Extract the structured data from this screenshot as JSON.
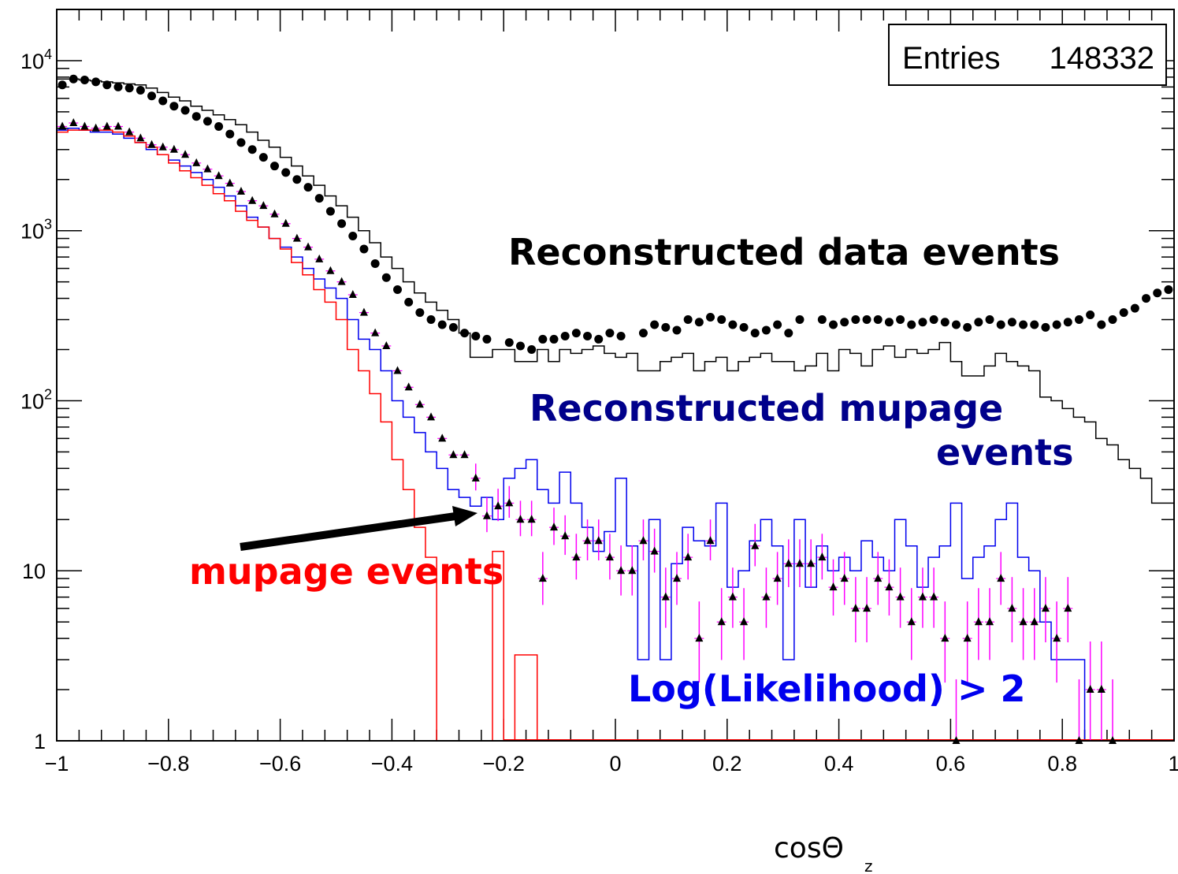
{
  "stats_box": {
    "label": "Entries",
    "value": "148332"
  },
  "annotations": {
    "data": "Reconstructed data events",
    "mupage_reco_line1": "Reconstructed mupage",
    "mupage_reco_line2": "events",
    "mupage": "mupage events",
    "cut": "Log(Likelihood) > 2"
  },
  "x_title_main": "cosΘ",
  "x_title_sub": "z",
  "colors": {
    "data": "#000000",
    "mupage_reco": "#0000ee",
    "mupage_reco_label": "#00008b",
    "mupage": "#ff0000",
    "cut_points": "#000000",
    "cut_errors": "#ff00ff",
    "cut_label": "#0000ee"
  },
  "chart_data": {
    "type": "histogram",
    "x_range": [
      -1,
      1
    ],
    "y_range": [
      1,
      20000
    ],
    "y_log": true,
    "x_ticks": [
      "-1",
      "-0.8",
      "-0.6",
      "-0.4",
      "-0.2",
      "0",
      "0.2",
      "0.4",
      "0.6",
      "0.8",
      "1"
    ],
    "x_tick_values": [
      -1,
      -0.8,
      -0.6,
      -0.4,
      -0.2,
      0,
      0.2,
      0.4,
      0.6,
      0.8,
      1
    ],
    "y_ticks": [
      {
        "value": 1,
        "base": "1",
        "exp": ""
      },
      {
        "value": 10,
        "base": "10",
        "exp": ""
      },
      {
        "value": 100,
        "base": "10",
        "exp": "2"
      },
      {
        "value": 1000,
        "base": "10",
        "exp": "3"
      },
      {
        "value": 10000,
        "base": "10",
        "exp": "4"
      }
    ],
    "series": [
      {
        "name": "Reconstructed data events",
        "style": "points-circle",
        "x_start": -1,
        "bin_width": 0.02,
        "values": [
          7200,
          7800,
          7700,
          7500,
          7200,
          7000,
          6900,
          6700,
          6200,
          5800,
          5400,
          5100,
          4700,
          4400,
          4100,
          3700,
          3300,
          3000,
          2700,
          2400,
          2200,
          2000,
          1800,
          1550,
          1300,
          1100,
          930,
          780,
          640,
          530,
          450,
          380,
          330,
          300,
          280,
          270,
          250,
          240,
          230,
          240,
          220,
          210,
          200,
          230,
          230,
          240,
          250,
          240,
          230,
          250,
          240,
          260,
          250,
          280,
          270,
          260,
          300,
          290,
          310,
          300,
          280,
          270,
          250,
          260,
          280,
          250,
          300,
          310,
          300,
          280,
          290,
          300,
          300,
          300,
          290,
          300,
          280,
          290,
          300,
          290,
          280,
          270,
          290,
          300,
          280,
          290,
          280,
          280,
          270,
          280,
          290,
          300,
          320,
          280,
          300,
          330,
          350,
          400,
          430,
          450
        ],
        "missing_bins": [
          39,
          51,
          67
        ]
      },
      {
        "name": "",
        "style": "step",
        "x_start": -1,
        "bin_width": 0.02,
        "values": [
          7800,
          7800,
          7700,
          7600,
          7500,
          7400,
          7300,
          7200,
          6900,
          6500,
          6100,
          5800,
          5400,
          5100,
          4800,
          4500,
          4200,
          3800,
          3400,
          3100,
          2700,
          2400,
          2100,
          1850,
          1600,
          1400,
          1200,
          1000,
          850,
          700,
          600,
          500,
          430,
          380,
          340,
          300,
          250,
          180,
          180,
          200,
          200,
          170,
          170,
          200,
          170,
          200,
          190,
          200,
          210,
          190,
          180,
          190,
          150,
          150,
          170,
          180,
          190,
          150,
          170,
          180,
          150,
          170,
          180,
          190,
          170,
          170,
          150,
          160,
          190,
          150,
          200,
          190,
          160,
          200,
          210,
          180,
          200,
          190,
          200,
          220,
          170,
          140,
          140,
          160,
          190,
          170,
          160,
          150,
          105,
          100,
          90,
          80,
          75,
          60,
          55,
          45,
          40,
          35,
          25,
          25
        ]
      },
      {
        "name": "",
        "style": "step",
        "x_start": -1,
        "bin_width": 0.02,
        "values": [
          3900,
          4000,
          3900,
          3800,
          3800,
          3700,
          3500,
          3300,
          3000,
          2800,
          2600,
          2400,
          2200,
          2000,
          1800,
          1600,
          1400,
          1200,
          1050,
          900,
          800,
          700,
          600,
          520,
          460,
          400,
          300,
          230,
          200,
          150,
          100,
          80,
          65,
          50,
          40,
          30,
          27,
          24,
          27,
          20,
          35,
          40,
          45,
          30,
          25,
          38,
          25,
          18,
          13,
          17,
          35,
          14,
          3,
          20,
          3,
          11,
          18,
          15,
          14,
          25,
          8,
          10,
          15,
          20,
          14,
          3,
          20,
          8,
          14,
          10,
          12,
          10,
          15,
          12,
          10,
          20,
          14,
          8,
          12,
          14,
          25,
          9,
          12,
          14,
          20,
          25,
          12,
          10,
          5,
          3,
          3,
          3,
          1,
          1,
          1,
          1,
          1,
          1,
          1,
          1
        ]
      },
      {
        "name": "mupage events",
        "style": "step",
        "x_start": -1,
        "bin_width": 0.02,
        "values": [
          3800,
          3900,
          3900,
          3900,
          3900,
          3800,
          3600,
          3300,
          3100,
          2800,
          2500,
          2250,
          2050,
          1850,
          1650,
          1500,
          1300,
          1150,
          1050,
          900,
          780,
          650,
          550,
          450,
          380,
          300,
          200,
          150,
          110,
          75,
          45,
          30,
          18,
          12,
          1,
          1,
          1,
          1,
          1,
          1
        ]
      },
      {
        "name": "",
        "style": "points-triangle",
        "x_start": -1,
        "bin_width": 0.02,
        "values": [
          4100,
          4300,
          4100,
          4000,
          4100,
          4100,
          3800,
          3500,
          3200,
          3100,
          3000,
          2800,
          2500,
          2300,
          2100,
          1900,
          1700,
          1500,
          1400,
          1250,
          1100,
          900,
          680,
          420,
          330,
          210,
          150,
          120,
          95,
          60,
          48,
          35,
          30,
          25,
          18,
          13,
          11,
          10,
          6,
          4,
          4,
          3,
          2.6,
          2.9,
          3,
          3,
          4,
          5,
          4,
          3,
          2,
          1.8,
          1.6,
          2.2,
          2.1,
          1.9,
          1.7,
          1.5,
          1.3,
          1.7,
          1.6,
          1.5,
          1.4,
          1.3,
          1.2,
          1.1,
          1.2,
          1.1,
          1.3,
          1.2,
          1.3,
          1.1,
          1.2,
          1.1,
          1.3,
          1.2,
          1.1,
          1.2,
          1.1,
          1.0,
          1.0,
          1.0,
          1.0,
          1.0,
          1.0,
          1.0,
          1.0,
          1.0,
          1.0,
          1.0,
          1.0,
          1.0,
          1.0,
          1.0,
          1.0,
          1.0,
          1.0,
          1.0,
          1.0,
          1.0
        ],
        "points_override": [
          [
            -0.99,
            4100
          ],
          [
            -0.97,
            4300
          ],
          [
            -0.95,
            4100
          ],
          [
            -0.93,
            4000
          ],
          [
            -0.91,
            4100
          ],
          [
            -0.89,
            4100
          ],
          [
            -0.87,
            3800
          ],
          [
            -0.85,
            3500
          ],
          [
            -0.83,
            3200
          ],
          [
            -0.81,
            3100
          ],
          [
            -0.79,
            3000
          ],
          [
            -0.77,
            2800
          ],
          [
            -0.75,
            2500
          ],
          [
            -0.73,
            2300
          ],
          [
            -0.71,
            2100
          ],
          [
            -0.69,
            1900
          ],
          [
            -0.67,
            1700
          ],
          [
            -0.65,
            1500
          ],
          [
            -0.63,
            1400
          ],
          [
            -0.61,
            1250
          ],
          [
            -0.59,
            1100
          ],
          [
            -0.57,
            900
          ],
          [
            -0.55,
            800
          ],
          [
            -0.53,
            680
          ],
          [
            -0.51,
            580
          ],
          [
            -0.49,
            500
          ],
          [
            -0.47,
            420
          ],
          [
            -0.45,
            330
          ],
          [
            -0.43,
            250
          ],
          [
            -0.41,
            210
          ],
          [
            -0.39,
            150
          ],
          [
            -0.37,
            120
          ],
          [
            -0.35,
            95
          ],
          [
            -0.33,
            80
          ],
          [
            -0.31,
            60
          ],
          [
            -0.29,
            48
          ],
          [
            -0.27,
            48
          ],
          [
            -0.25,
            35
          ],
          [
            -0.23,
            21
          ],
          [
            -0.21,
            24
          ],
          [
            -0.19,
            25
          ],
          [
            -0.17,
            20
          ],
          [
            -0.15,
            20
          ],
          [
            -0.13,
            9
          ],
          [
            -0.11,
            18
          ],
          [
            -0.09,
            16
          ],
          [
            -0.07,
            12
          ],
          [
            -0.05,
            15
          ],
          [
            -0.03,
            15
          ],
          [
            -0.01,
            12
          ],
          [
            0.01,
            10
          ],
          [
            0.03,
            10
          ],
          [
            0.05,
            15
          ],
          [
            0.07,
            13
          ],
          [
            0.09,
            7
          ],
          [
            0.11,
            9
          ],
          [
            0.13,
            12
          ],
          [
            0.15,
            4
          ],
          [
            0.17,
            15
          ],
          [
            0.19,
            5
          ],
          [
            0.21,
            7
          ],
          [
            0.23,
            5
          ],
          [
            0.25,
            14
          ],
          [
            0.27,
            7
          ],
          [
            0.29,
            9
          ],
          [
            0.31,
            11
          ],
          [
            0.33,
            11
          ],
          [
            0.35,
            11
          ],
          [
            0.37,
            12
          ],
          [
            0.39,
            8
          ],
          [
            0.41,
            9
          ],
          [
            0.43,
            6
          ],
          [
            0.45,
            6
          ],
          [
            0.47,
            9
          ],
          [
            0.49,
            8
          ],
          [
            0.51,
            7
          ],
          [
            0.53,
            5
          ],
          [
            0.55,
            7
          ],
          [
            0.57,
            7
          ],
          [
            0.59,
            4
          ],
          [
            0.61,
            1
          ],
          [
            0.63,
            4
          ],
          [
            0.65,
            5
          ],
          [
            0.67,
            5
          ],
          [
            0.69,
            9
          ],
          [
            0.71,
            6
          ],
          [
            0.73,
            5
          ],
          [
            0.75,
            5
          ],
          [
            0.77,
            6
          ],
          [
            0.79,
            4
          ],
          [
            0.81,
            6
          ],
          [
            0.83,
            1
          ],
          [
            0.85,
            2
          ],
          [
            0.87,
            2
          ],
          [
            0.89,
            1
          ]
        ]
      }
    ]
  }
}
